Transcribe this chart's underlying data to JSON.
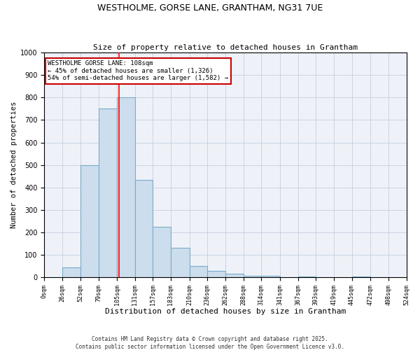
{
  "title_line1": "WESTHOLME, GORSE LANE, GRANTHAM, NG31 7UE",
  "title_line2": "Size of property relative to detached houses in Grantham",
  "xlabel": "Distribution of detached houses by size in Grantham",
  "ylabel": "Number of detached properties",
  "bin_edges": [
    0,
    26,
    52,
    79,
    105,
    131,
    157,
    183,
    210,
    236,
    262,
    288,
    314,
    341,
    367,
    393,
    419,
    445,
    472,
    498,
    524
  ],
  "bar_heights": [
    0,
    45,
    500,
    750,
    800,
    435,
    225,
    130,
    50,
    27,
    15,
    8,
    8,
    0,
    5,
    0,
    0,
    5,
    0,
    0
  ],
  "bar_color": "#ccdded",
  "bar_edge_color": "#7aaac8",
  "grid_color": "#c5cfe0",
  "background_color": "#eef2f8",
  "red_line_x": 108,
  "annotation_title": "WESTHOLME GORSE LANE: 108sqm",
  "annotation_line2": "← 45% of detached houses are smaller (1,326)",
  "annotation_line3": "54% of semi-detached houses are larger (1,582) →",
  "annotation_box_color": "#ffffff",
  "annotation_border_color": "#cc0000",
  "ylim": [
    0,
    1000
  ],
  "yticks": [
    0,
    100,
    200,
    300,
    400,
    500,
    600,
    700,
    800,
    900,
    1000
  ],
  "footer_line1": "Contains HM Land Registry data © Crown copyright and database right 2025.",
  "footer_line2": "Contains public sector information licensed under the Open Government Licence v3.0."
}
